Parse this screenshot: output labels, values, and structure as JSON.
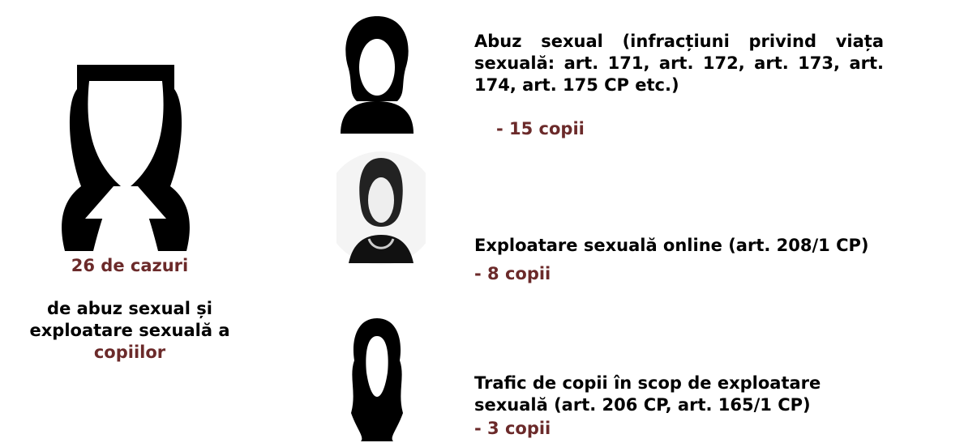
{
  "summary": {
    "count": "26 de cazuri",
    "description": "de abuz sexual și exploatare sexuală a",
    "highlight": "copiilor"
  },
  "items": [
    {
      "text": "Abuz sexual (infracțiuni privind viața sexuală: art. 171, art. 172, art. 173, art. 174, art. 175 CP etc.)",
      "count": "- 15 copii"
    },
    {
      "text": "Exploatare sexuală online (art. 208/1 CP)",
      "count": "- 8 copii"
    },
    {
      "text": "Trafic de copii în scop de exploatare sexuală (art. 206 CP, art. 165/1 CP)",
      "count": "- 3 copii"
    }
  ]
}
